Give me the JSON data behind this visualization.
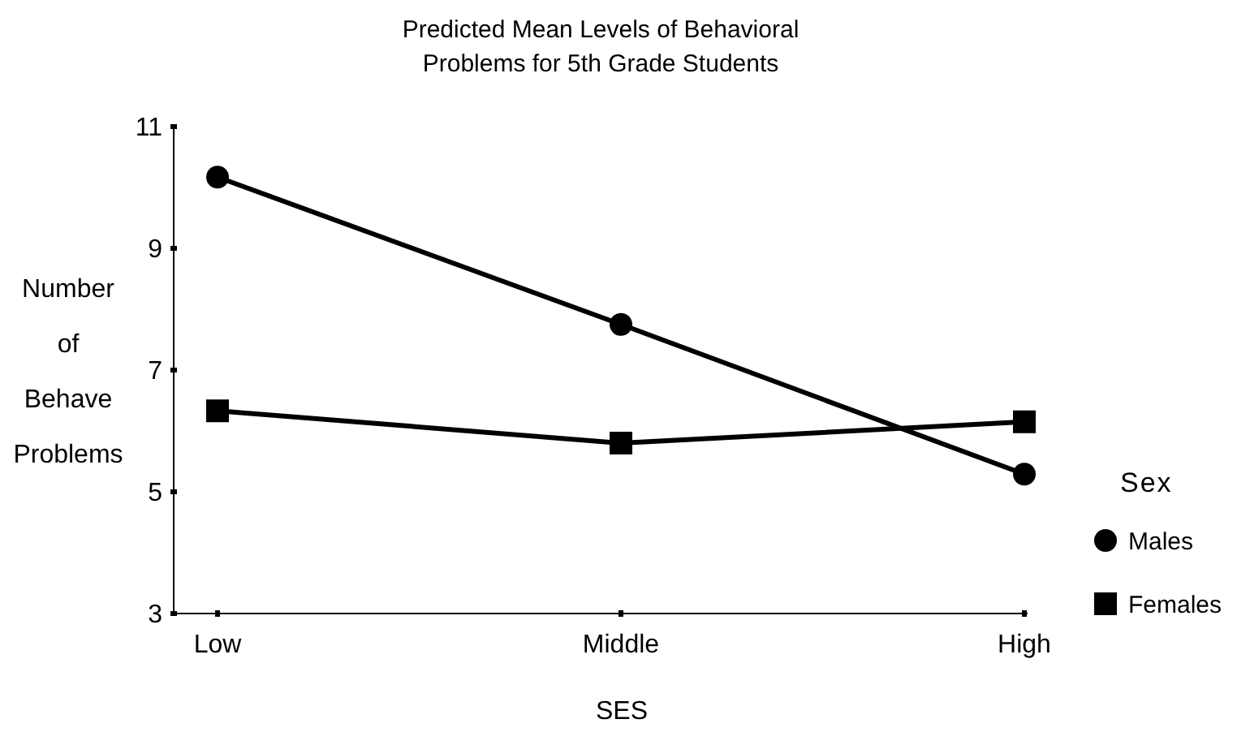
{
  "chart_data": {
    "type": "line",
    "title": "Predicted Mean Levels of Behavioral\nProblems for 5th Grade Students",
    "xlabel": "SES",
    "ylabel": "Number\nof\nBehave\nProblems",
    "legend_title": "Sex",
    "categories": [
      "Low",
      "Middle",
      "High"
    ],
    "series": [
      {
        "name": "Males",
        "color": "#000000",
        "marker": "circle",
        "values": [
          10.17,
          7.75,
          5.29
        ]
      },
      {
        "name": "Females",
        "color": "#000000",
        "marker": "square",
        "values": [
          6.33,
          5.8,
          6.15
        ]
      }
    ],
    "ylim": [
      3,
      11
    ],
    "yticks": [
      3,
      5,
      7,
      9,
      11
    ],
    "grid": false,
    "legend": "right",
    "line_style": "solid"
  }
}
